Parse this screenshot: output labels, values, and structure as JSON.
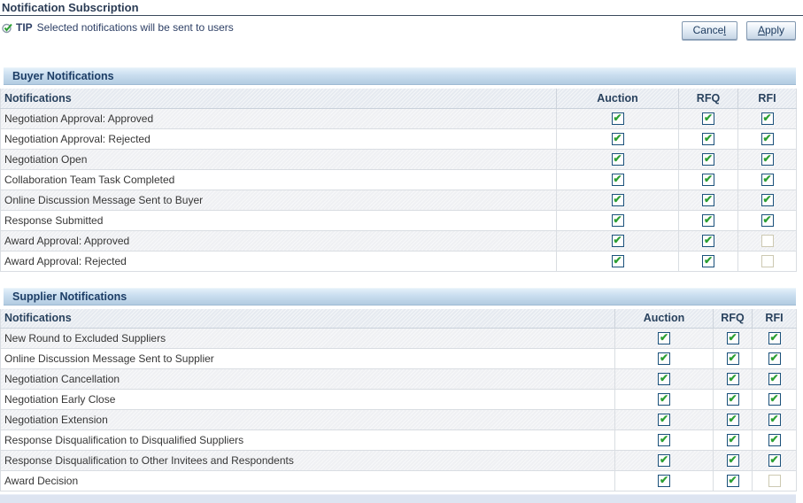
{
  "page": {
    "title": "Notification Subscription",
    "tip_label": "TIP",
    "tip_text": "Selected notifications will be sent to users"
  },
  "actions": {
    "cancel": {
      "pre": "Cance",
      "key": "l",
      "post": ""
    },
    "apply": {
      "pre": "",
      "key": "A",
      "post": "pply"
    }
  },
  "colors": {
    "title_text": "#2b3c55",
    "section_bar_top": "#e3eff9",
    "section_bar_bottom": "#b2cbe1",
    "section_header_text": "#1d3e66",
    "table_header_bg": "#e6eaf0",
    "stripe_row_bg": "#eff0f3",
    "checkbox_border": "#1b517b",
    "checkbox_disabled_border": "#cdc9b2",
    "check_green": "#2c9f33",
    "footer_strip": "#dde4f1"
  },
  "icons": {
    "tip_icon": "check-circle-icon",
    "check_icon": "green-checkmark"
  },
  "buyer": {
    "section_title": "Buyer Notifications",
    "columns": {
      "name": "Notifications",
      "auction": "Auction",
      "rfq": "RFQ",
      "rfi": "RFI"
    },
    "rows": [
      {
        "label": "Negotiation Approval: Approved",
        "auction": "checked",
        "rfq": "checked",
        "rfi": "checked"
      },
      {
        "label": "Negotiation Approval: Rejected",
        "auction": "checked",
        "rfq": "checked",
        "rfi": "checked"
      },
      {
        "label": "Negotiation Open",
        "auction": "checked",
        "rfq": "checked",
        "rfi": "checked"
      },
      {
        "label": "Collaboration Team Task Completed",
        "auction": "checked",
        "rfq": "checked",
        "rfi": "checked"
      },
      {
        "label": "Online Discussion Message Sent to Buyer",
        "auction": "checked",
        "rfq": "checked",
        "rfi": "checked"
      },
      {
        "label": "Response Submitted",
        "auction": "checked",
        "rfq": "checked",
        "rfi": "checked"
      },
      {
        "label": "Award Approval: Approved",
        "auction": "checked",
        "rfq": "checked",
        "rfi": "disabled"
      },
      {
        "label": "Award Approval: Rejected",
        "auction": "checked",
        "rfq": "checked",
        "rfi": "disabled"
      }
    ]
  },
  "supplier": {
    "section_title": "Supplier Notifications",
    "columns": {
      "name": "Notifications",
      "auction": "Auction",
      "rfq": "RFQ",
      "rfi": "RFI"
    },
    "rows": [
      {
        "label": "New Round to Excluded Suppliers",
        "auction": "checked",
        "rfq": "checked",
        "rfi": "checked"
      },
      {
        "label": "Online Discussion Message Sent to Supplier",
        "auction": "checked",
        "rfq": "checked",
        "rfi": "checked"
      },
      {
        "label": "Negotiation Cancellation",
        "auction": "checked",
        "rfq": "checked",
        "rfi": "checked"
      },
      {
        "label": "Negotiation Early Close",
        "auction": "checked",
        "rfq": "checked",
        "rfi": "checked"
      },
      {
        "label": "Negotiation Extension",
        "auction": "checked",
        "rfq": "checked",
        "rfi": "checked"
      },
      {
        "label": "Response Disqualification to Disqualified Suppliers",
        "auction": "checked",
        "rfq": "checked",
        "rfi": "checked"
      },
      {
        "label": "Response Disqualification to Other Invitees and Respondents",
        "auction": "checked",
        "rfq": "checked",
        "rfi": "checked"
      },
      {
        "label": "Award Decision",
        "auction": "checked",
        "rfq": "checked",
        "rfi": "disabled"
      }
    ]
  }
}
